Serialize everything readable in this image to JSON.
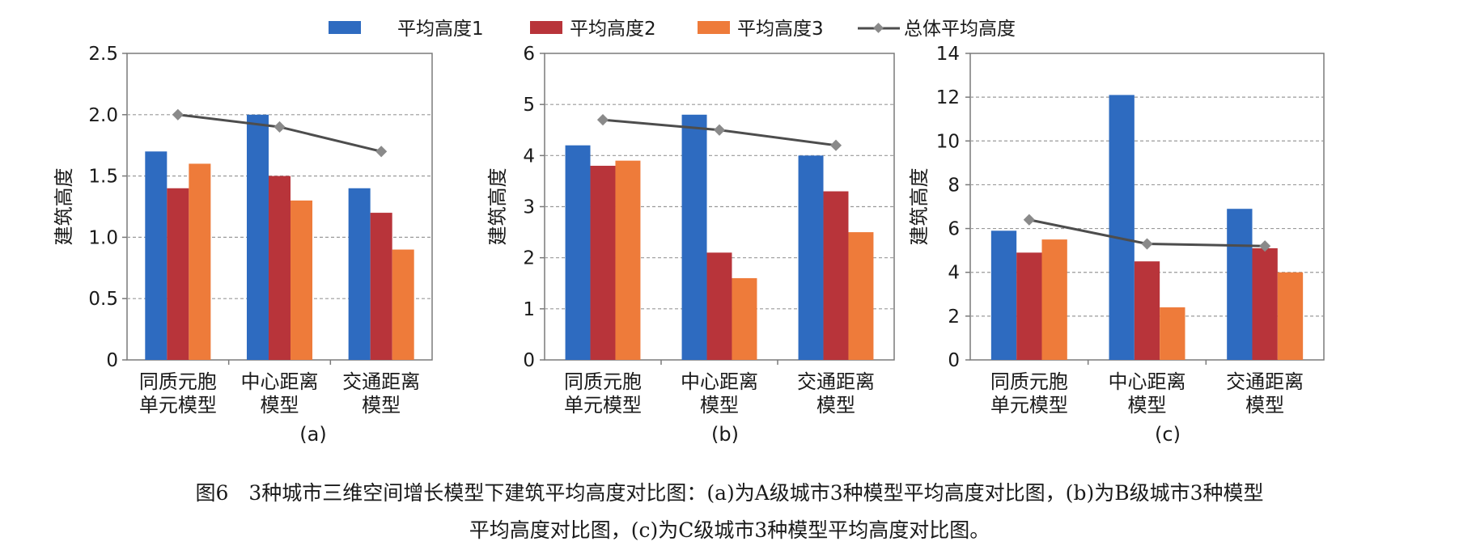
{
  "legend": {
    "items": [
      {
        "label": "平均高度1",
        "color": "#2e6bc0",
        "kind": "bar"
      },
      {
        "label": "平均高度2",
        "color": "#b8343a",
        "kind": "bar"
      },
      {
        "label": "平均高度3",
        "color": "#ee7b3a",
        "kind": "bar"
      },
      {
        "label": "总体平均高度",
        "color": "#4d4d4d",
        "kind": "line"
      }
    ]
  },
  "chart_data": [
    {
      "type": "bar",
      "sublabel": "(a)",
      "ylabel": "建筑高度",
      "ylim": [
        0,
        2.5
      ],
      "yticks": [
        "0",
        "0.5",
        "1.0",
        "1.5",
        "2.0",
        "2.5"
      ],
      "categories": [
        [
          "同质元胞",
          "单元模型"
        ],
        [
          "中心距离",
          "模型"
        ],
        [
          "交通距离",
          "模型"
        ]
      ],
      "series": [
        {
          "name": "平均高度1",
          "values": [
            1.7,
            2.0,
            1.4
          ]
        },
        {
          "name": "平均高度2",
          "values": [
            1.4,
            1.5,
            1.2
          ]
        },
        {
          "name": "平均高度3",
          "values": [
            1.6,
            1.3,
            0.9
          ]
        }
      ],
      "line": {
        "name": "总体平均高度",
        "values": [
          2.0,
          1.9,
          1.7
        ]
      },
      "grid": true,
      "legend_position": "top"
    },
    {
      "type": "bar",
      "sublabel": "(b)",
      "ylabel": "建筑高度",
      "ylim": [
        0,
        6
      ],
      "yticks": [
        "0",
        "1",
        "2",
        "3",
        "4",
        "5",
        "6"
      ],
      "categories": [
        [
          "同质元胞",
          "单元模型"
        ],
        [
          "中心距离",
          "模型"
        ],
        [
          "交通距离",
          "模型"
        ]
      ],
      "series": [
        {
          "name": "平均高度1",
          "values": [
            4.2,
            4.8,
            4.0
          ]
        },
        {
          "name": "平均高度2",
          "values": [
            3.8,
            2.1,
            3.3
          ]
        },
        {
          "name": "平均高度3",
          "values": [
            3.9,
            1.6,
            2.5
          ]
        }
      ],
      "line": {
        "name": "总体平均高度",
        "values": [
          4.7,
          4.5,
          4.2
        ]
      },
      "grid": true,
      "legend_position": "top"
    },
    {
      "type": "bar",
      "sublabel": "(c)",
      "ylabel": "建筑高度",
      "ylim": [
        0,
        14
      ],
      "yticks": [
        "0",
        "2",
        "4",
        "6",
        "8",
        "10",
        "12",
        "14"
      ],
      "categories": [
        [
          "同质元胞",
          "单元模型"
        ],
        [
          "中心距离",
          "模型"
        ],
        [
          "交通距离",
          "模型"
        ]
      ],
      "series": [
        {
          "name": "平均高度1",
          "values": [
            5.9,
            12.1,
            6.9
          ]
        },
        {
          "name": "平均高度2",
          "values": [
            4.9,
            4.5,
            5.1
          ]
        },
        {
          "name": "平均高度3",
          "values": [
            5.5,
            2.4,
            4.0
          ]
        }
      ],
      "line": {
        "name": "总体平均高度",
        "values": [
          6.4,
          5.3,
          5.2
        ]
      },
      "grid": true,
      "legend_position": "top"
    }
  ],
  "caption": {
    "line1": "图6　3种城市三维空间增长模型下建筑平均高度对比图：(a)为A级城市3种模型平均高度对比图，(b)为B级城市3种模型",
    "line2": "平均高度对比图，(c)为C级城市3种模型平均高度对比图。"
  }
}
